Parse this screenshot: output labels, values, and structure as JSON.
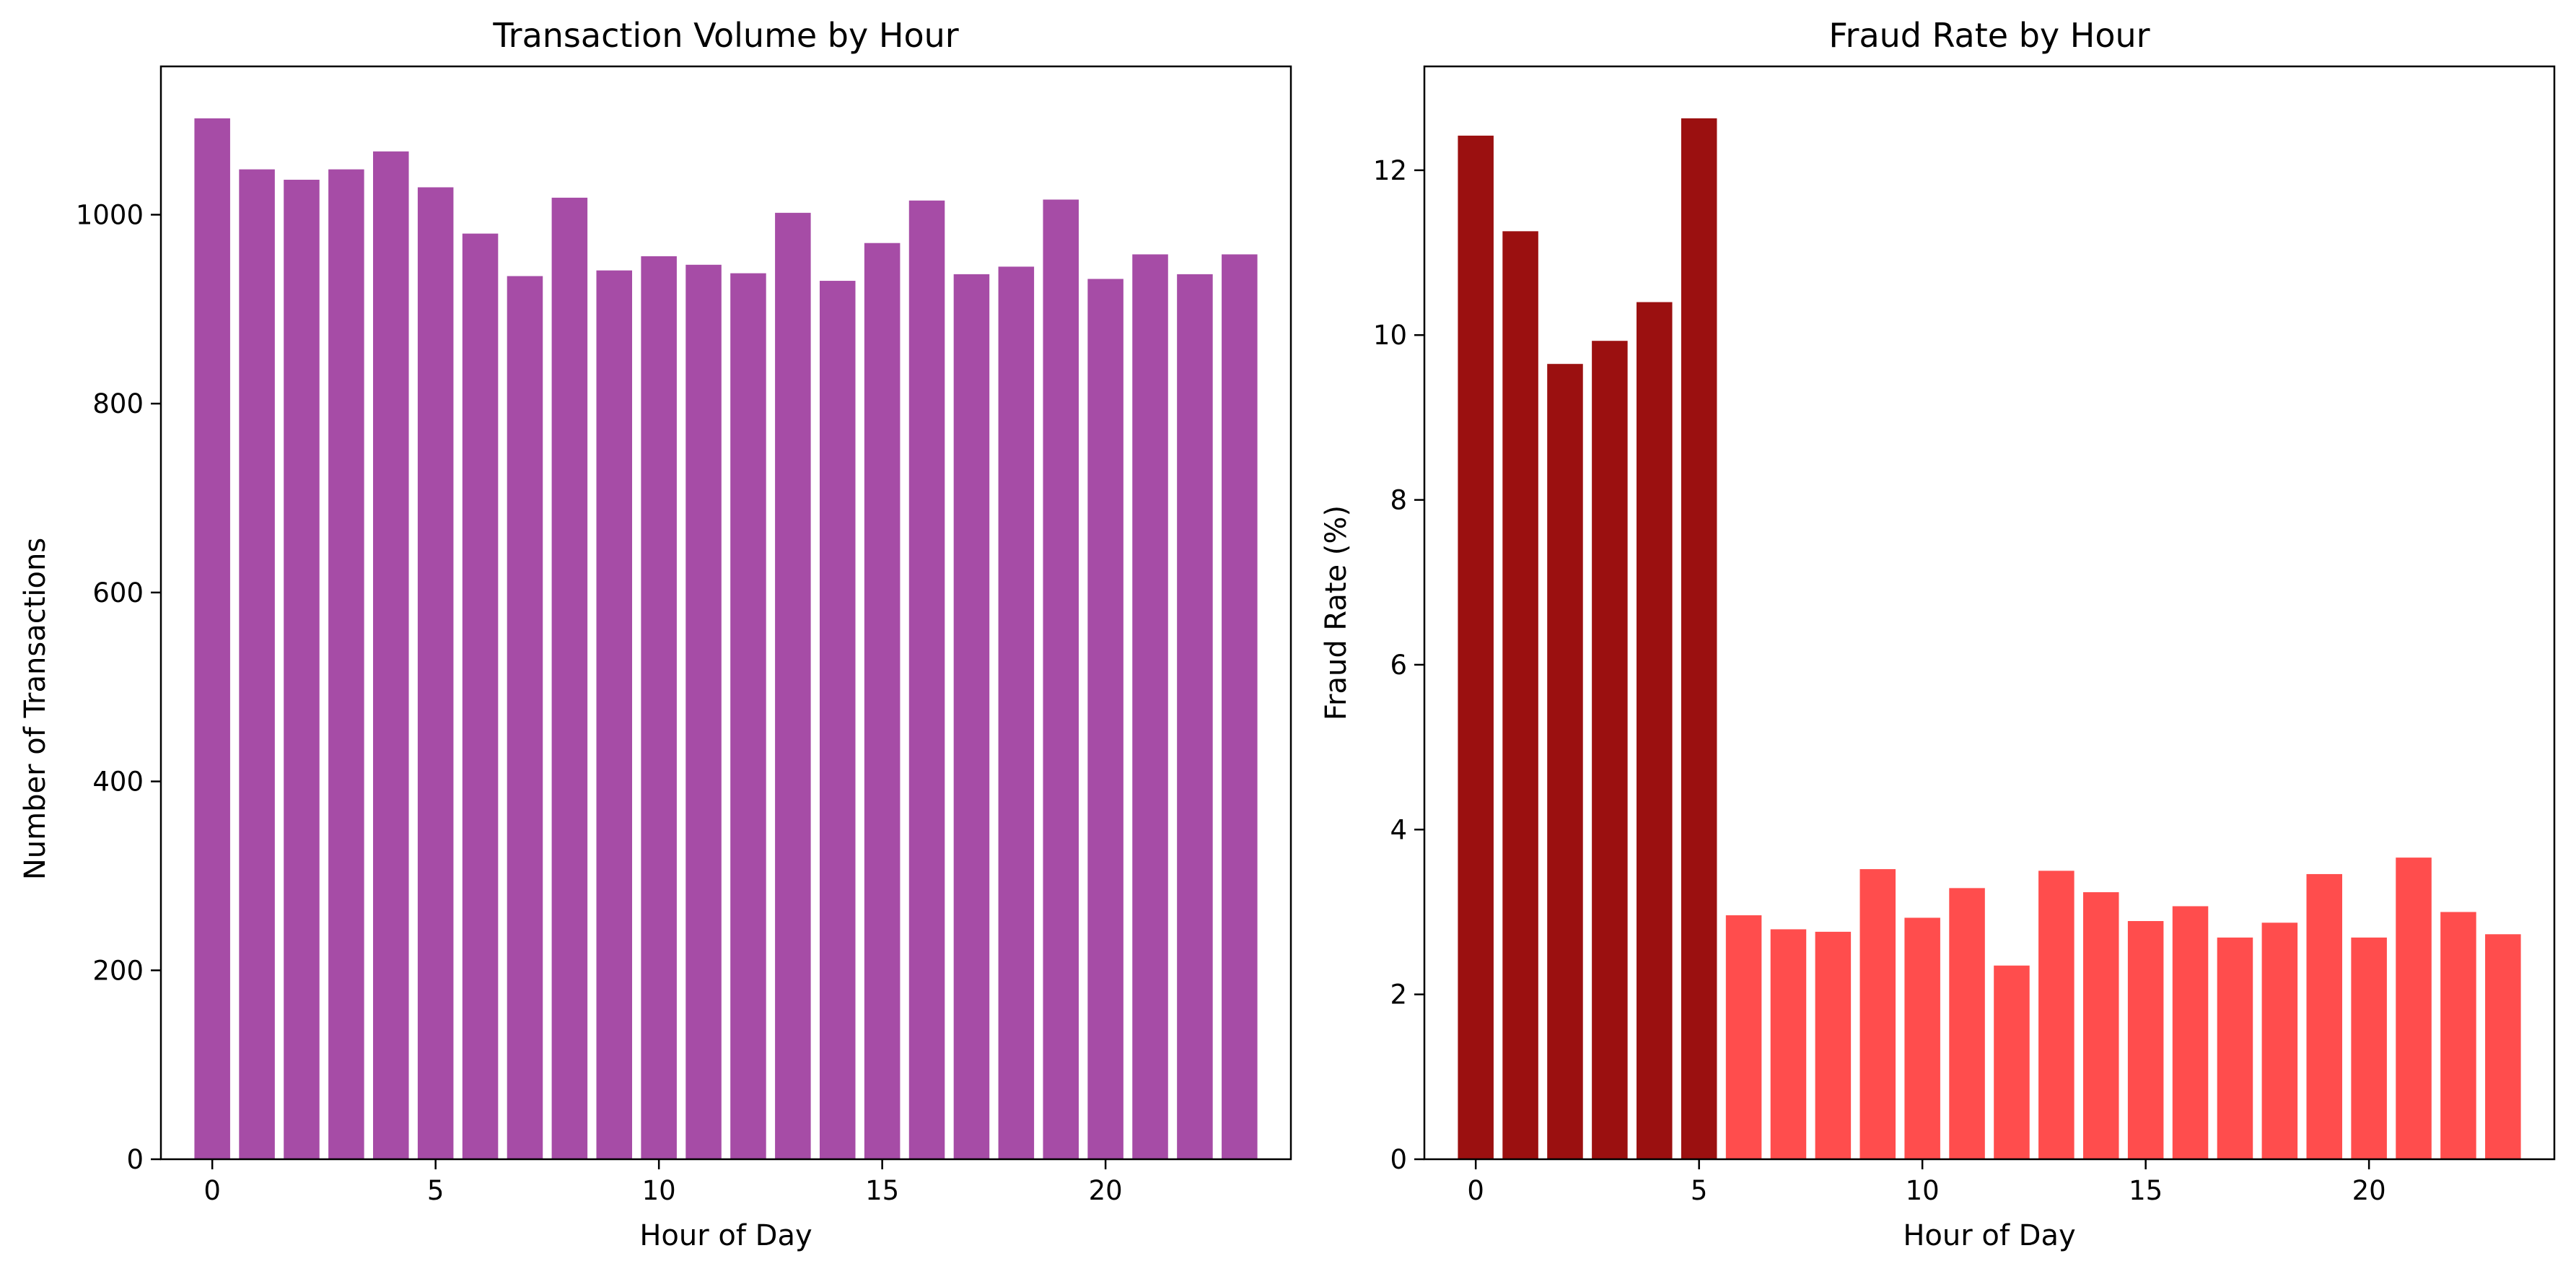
{
  "chart_data": [
    {
      "type": "bar",
      "title": "Transaction Volume by Hour",
      "xlabel": "Hour of Day",
      "ylabel": "Number of Transactions",
      "x": [
        0,
        1,
        2,
        3,
        4,
        5,
        6,
        7,
        8,
        9,
        10,
        11,
        12,
        13,
        14,
        15,
        16,
        17,
        18,
        19,
        20,
        21,
        22,
        23
      ],
      "values": [
        1102,
        1048,
        1037,
        1048,
        1067,
        1029,
        980,
        935,
        1018,
        941,
        956,
        947,
        938,
        1002,
        930,
        970,
        1015,
        937,
        945,
        1016,
        932,
        958,
        937,
        958
      ],
      "xlim": [
        -1.15,
        24.15
      ],
      "ylim": [
        0,
        1157
      ],
      "xticks": [
        0,
        5,
        10,
        15,
        20
      ],
      "yticks": [
        0,
        200,
        400,
        600,
        800,
        1000
      ],
      "color": "#a64ca6",
      "grid": false
    },
    {
      "type": "bar",
      "title": "Fraud Rate by Hour",
      "xlabel": "Hour of Day",
      "ylabel": "Fraud Rate (%)",
      "x": [
        0,
        1,
        2,
        3,
        4,
        5,
        6,
        7,
        8,
        9,
        10,
        11,
        12,
        13,
        14,
        15,
        16,
        17,
        18,
        19,
        20,
        21,
        22,
        23
      ],
      "values": [
        12.42,
        11.26,
        9.65,
        9.93,
        10.4,
        12.63,
        2.96,
        2.79,
        2.76,
        3.52,
        2.93,
        3.29,
        2.35,
        3.5,
        3.24,
        2.89,
        3.07,
        2.69,
        2.87,
        3.46,
        2.69,
        3.66,
        3.0,
        2.73
      ],
      "colors": [
        "#9b1010",
        "#9b1010",
        "#9b1010",
        "#9b1010",
        "#9b1010",
        "#9b1010",
        "#ff4d4d",
        "#ff4d4d",
        "#ff4d4d",
        "#ff4d4d",
        "#ff4d4d",
        "#ff4d4d",
        "#ff4d4d",
        "#ff4d4d",
        "#ff4d4d",
        "#ff4d4d",
        "#ff4d4d",
        "#ff4d4d",
        "#ff4d4d",
        "#ff4d4d",
        "#ff4d4d",
        "#ff4d4d",
        "#ff4d4d",
        "#ff4d4d"
      ],
      "xlim": [
        -1.15,
        24.15
      ],
      "ylim": [
        0,
        13.26
      ],
      "xticks": [
        0,
        5,
        10,
        15,
        20
      ],
      "yticks": [
        0,
        2,
        4,
        6,
        8,
        10,
        12
      ],
      "grid": false
    }
  ]
}
